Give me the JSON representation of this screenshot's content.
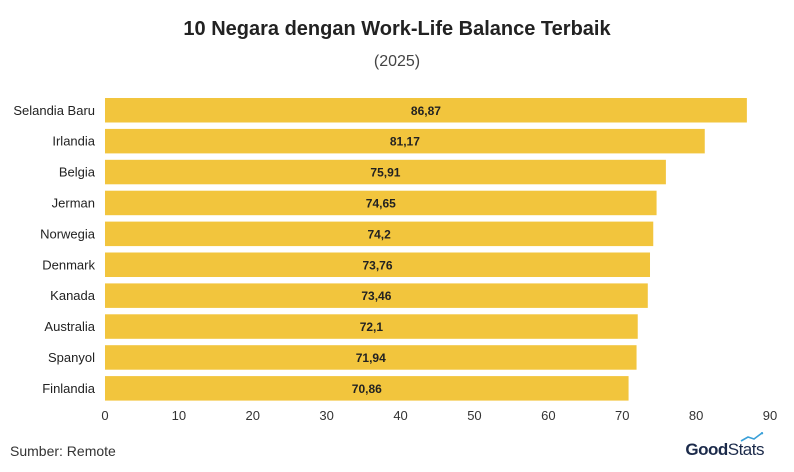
{
  "chart_data": {
    "type": "bar",
    "orientation": "horizontal",
    "title": "10 Negara dengan Work-Life Balance Terbaik",
    "subtitle": "(2025)",
    "categories": [
      "Selandia Baru",
      "Irlandia",
      "Belgia",
      "Jerman",
      "Norwegia",
      "Denmark",
      "Kanada",
      "Australia",
      "Spanyol",
      "Finlandia"
    ],
    "values": [
      86.87,
      81.17,
      75.91,
      74.65,
      74.2,
      73.76,
      73.46,
      72.1,
      71.94,
      70.86
    ],
    "value_labels": [
      "86,87",
      "81,17",
      "75,91",
      "74,65",
      "74,2",
      "73,76",
      "73,46",
      "72,1",
      "71,94",
      "70,86"
    ],
    "xlim": [
      0,
      90
    ],
    "xticks": [
      0,
      10,
      20,
      30,
      40,
      50,
      60,
      70,
      80,
      90
    ],
    "grid": false,
    "bar_color": "#f2c53d"
  },
  "source": "Sumber: Remote",
  "logo": {
    "part1": "Good",
    "part2": "Stats"
  }
}
